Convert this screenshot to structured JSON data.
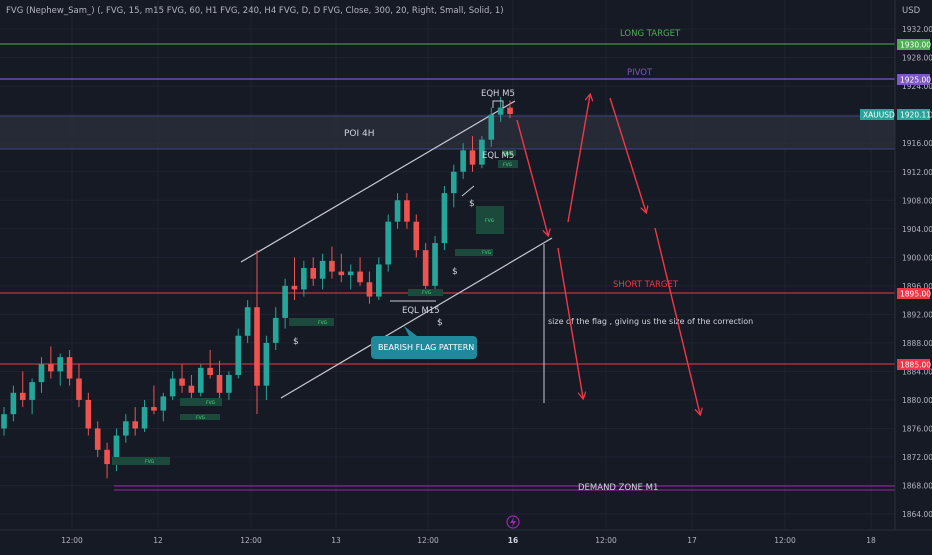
{
  "header": {
    "indicator": "FVG (Nephew_Sam_) (, FVG, 15, m15 FVG, 60, H1 FVG, 240, H4 FVG, D, D FVG, Close, 300, 20, Right, Small, Solid, 1)",
    "currency": "USD"
  },
  "colors": {
    "background": "#161a25",
    "bull": "#26a69a",
    "bear": "#ef5350",
    "long_target": "#4caf50",
    "pivot": "#7e57c2",
    "short_target": "#f23645",
    "demand_zone": "#9c27b0",
    "arrows": "#f23645",
    "callout": "#1e8a9c"
  },
  "chart_data": {
    "type": "candlestick",
    "symbol": "XAUUSD",
    "current_price": 1920.11,
    "ylim": [
      1862,
      1936
    ],
    "y_ticks": [
      "1864.00",
      "1868.00",
      "1872.00",
      "1876.00",
      "1880.00",
      "1884.00",
      "1888.00",
      "1892.00",
      "1896.00",
      "1900.00",
      "1904.00",
      "1908.00",
      "1912.00",
      "1916.00",
      "1920.00",
      "1924.00",
      "1928.00",
      "1932.00"
    ],
    "x_ticks": [
      "12:00",
      "12",
      "12:00",
      "13",
      "12:00",
      "16",
      "12:00",
      "17",
      "12:00",
      "18"
    ],
    "levels": [
      {
        "name": "LONG TARGET",
        "price": 1930.0,
        "label": "1930.00",
        "color": "#4caf50"
      },
      {
        "name": "PIVOT",
        "price": 1925.0,
        "label": "1925.00",
        "color": "#7e57c2"
      },
      {
        "name": "SHORT TARGET",
        "price": 1895.0,
        "label": "1895.00",
        "color": "#f23645"
      },
      {
        "name": "",
        "price": 1885.0,
        "label": "1885.00",
        "color": "#f23645"
      },
      {
        "name": "DEMAND ZONE M1",
        "price": 1868.0,
        "label": "",
        "color": "#9c27b0"
      }
    ],
    "zones": [
      {
        "name": "POI 4H",
        "from": 1915.3,
        "to": 1920.5
      }
    ],
    "annotations": {
      "eqh": "EQH M5",
      "eql_m5": "EQL M5",
      "eql_m15": "EQL M15",
      "dollar": "$",
      "fvg": "FVG",
      "callout": "BEARISH FLAG PATTERN",
      "note": "size of the flag , giving us the size of the correction"
    },
    "candles": [
      [
        1876.0,
        1879.0,
        1875.0,
        1878.0
      ],
      [
        1878.0,
        1882.0,
        1877.0,
        1881.0
      ],
      [
        1881.0,
        1884.0,
        1879.0,
        1880.0
      ],
      [
        1880.0,
        1883.0,
        1878.0,
        1882.5
      ],
      [
        1882.5,
        1886.0,
        1881.0,
        1885.0
      ],
      [
        1885.0,
        1887.5,
        1883.0,
        1884.0
      ],
      [
        1884.0,
        1886.5,
        1882.0,
        1886.0
      ],
      [
        1886.0,
        1887.0,
        1882.0,
        1883.0
      ],
      [
        1883.0,
        1885.0,
        1879.0,
        1880.0
      ],
      [
        1880.0,
        1881.0,
        1875.0,
        1876.0
      ],
      [
        1876.0,
        1877.0,
        1872.0,
        1873.0
      ],
      [
        1873.0,
        1874.0,
        1869.0,
        1871.0
      ],
      [
        1871.0,
        1876.0,
        1870.0,
        1875.0
      ],
      [
        1875.0,
        1878.0,
        1874.0,
        1877.0
      ],
      [
        1877.0,
        1879.0,
        1875.0,
        1876.0
      ],
      [
        1876.0,
        1880.0,
        1875.5,
        1879.0
      ],
      [
        1879.0,
        1882.0,
        1878.0,
        1878.5
      ],
      [
        1878.5,
        1881.0,
        1877.0,
        1880.5
      ],
      [
        1880.5,
        1884.0,
        1880.0,
        1883.0
      ],
      [
        1883.0,
        1885.0,
        1881.0,
        1882.0
      ],
      [
        1882.0,
        1883.5,
        1880.0,
        1881.0
      ],
      [
        1881.0,
        1885.0,
        1880.5,
        1884.5
      ],
      [
        1884.5,
        1887.0,
        1883.0,
        1883.5
      ],
      [
        1883.5,
        1885.5,
        1880.0,
        1881.0
      ],
      [
        1881.0,
        1884.0,
        1880.0,
        1883.5
      ],
      [
        1883.5,
        1890.0,
        1883.0,
        1889.0
      ],
      [
        1889.0,
        1894.0,
        1888.0,
        1893.0
      ],
      [
        1893.0,
        1901.0,
        1878.0,
        1882.0
      ],
      [
        1882.0,
        1889.0,
        1880.0,
        1888.0
      ],
      [
        1888.0,
        1893.0,
        1887.0,
        1891.5
      ],
      [
        1891.5,
        1897.0,
        1890.0,
        1896.0
      ],
      [
        1896.0,
        1900.0,
        1894.0,
        1895.5
      ],
      [
        1895.5,
        1899.5,
        1894.5,
        1898.5
      ],
      [
        1898.5,
        1900.0,
        1896.0,
        1897.0
      ],
      [
        1897.0,
        1900.5,
        1895.5,
        1899.5
      ],
      [
        1899.5,
        1901.5,
        1897.0,
        1898.0
      ],
      [
        1898.0,
        1900.5,
        1896.5,
        1897.5
      ],
      [
        1897.5,
        1899.0,
        1895.5,
        1898.0
      ],
      [
        1898.0,
        1900.0,
        1896.0,
        1896.5
      ],
      [
        1896.5,
        1898.0,
        1893.5,
        1894.5
      ],
      [
        1894.5,
        1900.0,
        1894.0,
        1899.0
      ],
      [
        1899.0,
        1906.0,
        1898.0,
        1905.0
      ],
      [
        1905.0,
        1909.0,
        1904.0,
        1908.0
      ],
      [
        1908.0,
        1909.0,
        1904.0,
        1905.0
      ],
      [
        1905.0,
        1906.0,
        1900.0,
        1901.0
      ],
      [
        1901.0,
        1902.0,
        1895.5,
        1896.0
      ],
      [
        1896.0,
        1903.0,
        1895.0,
        1902.0
      ],
      [
        1902.0,
        1910.0,
        1901.0,
        1909.0
      ],
      [
        1909.0,
        1913.0,
        1907.0,
        1912.0
      ],
      [
        1912.0,
        1916.0,
        1911.0,
        1915.0
      ],
      [
        1915.0,
        1917.0,
        1912.0,
        1913.0
      ],
      [
        1913.0,
        1917.0,
        1912.5,
        1916.5
      ],
      [
        1916.5,
        1921.0,
        1915.5,
        1920.0
      ],
      [
        1920.0,
        1922.5,
        1919.0,
        1921.0
      ],
      [
        1921.0,
        1922.0,
        1919.5,
        1920.11
      ]
    ]
  }
}
